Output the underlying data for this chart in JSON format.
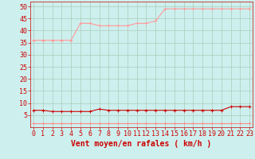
{
  "title": "",
  "xlabel": "Vent moyen/en rafales ( km/h )",
  "ylabel": "",
  "bg_color": "#cdf0ee",
  "grid_color": "#aaccbb",
  "x": [
    0,
    1,
    2,
    3,
    4,
    5,
    6,
    7,
    8,
    9,
    10,
    11,
    12,
    13,
    14,
    15,
    16,
    17,
    18,
    19,
    20,
    21,
    22,
    23
  ],
  "line1_y": [
    36,
    36,
    36,
    36,
    36,
    43,
    43,
    42,
    42,
    42,
    42,
    43,
    43,
    44,
    49,
    49,
    49,
    49,
    49,
    49,
    49,
    49,
    49,
    49
  ],
  "line1_color": "#ff9999",
  "line2_y": [
    7,
    7,
    6.5,
    6.5,
    6.5,
    6.5,
    6.5,
    7.5,
    7,
    7,
    7,
    7,
    7,
    7,
    7,
    7,
    7,
    7,
    7,
    7,
    7,
    8.5,
    8.5,
    8.5
  ],
  "line2_color": "#cc0000",
  "line3_y": [
    1.5,
    1.5,
    1.5,
    1.5,
    1.5,
    1.5,
    1.5,
    1.5,
    1.5,
    1.5,
    1.5,
    1.5,
    1.5,
    1.5,
    1.5,
    1.5,
    1.5,
    1.5,
    1.5,
    1.5,
    1.5,
    1.5,
    1.5,
    1.5
  ],
  "line3_color": "#ff8888",
  "marker": "+",
  "markersize": 3,
  "linewidth": 0.8,
  "ylim": [
    0,
    52
  ],
  "yticks": [
    5,
    10,
    15,
    20,
    25,
    30,
    35,
    40,
    45,
    50
  ],
  "xticks": [
    0,
    1,
    2,
    3,
    4,
    5,
    6,
    7,
    8,
    9,
    10,
    11,
    12,
    13,
    14,
    15,
    16,
    17,
    18,
    19,
    20,
    21,
    22,
    23
  ],
  "xlabel_color": "#cc0000",
  "xlabel_fontsize": 7,
  "tick_fontsize": 6,
  "tick_color": "#cc0000",
  "spine_color": "#cc0000"
}
